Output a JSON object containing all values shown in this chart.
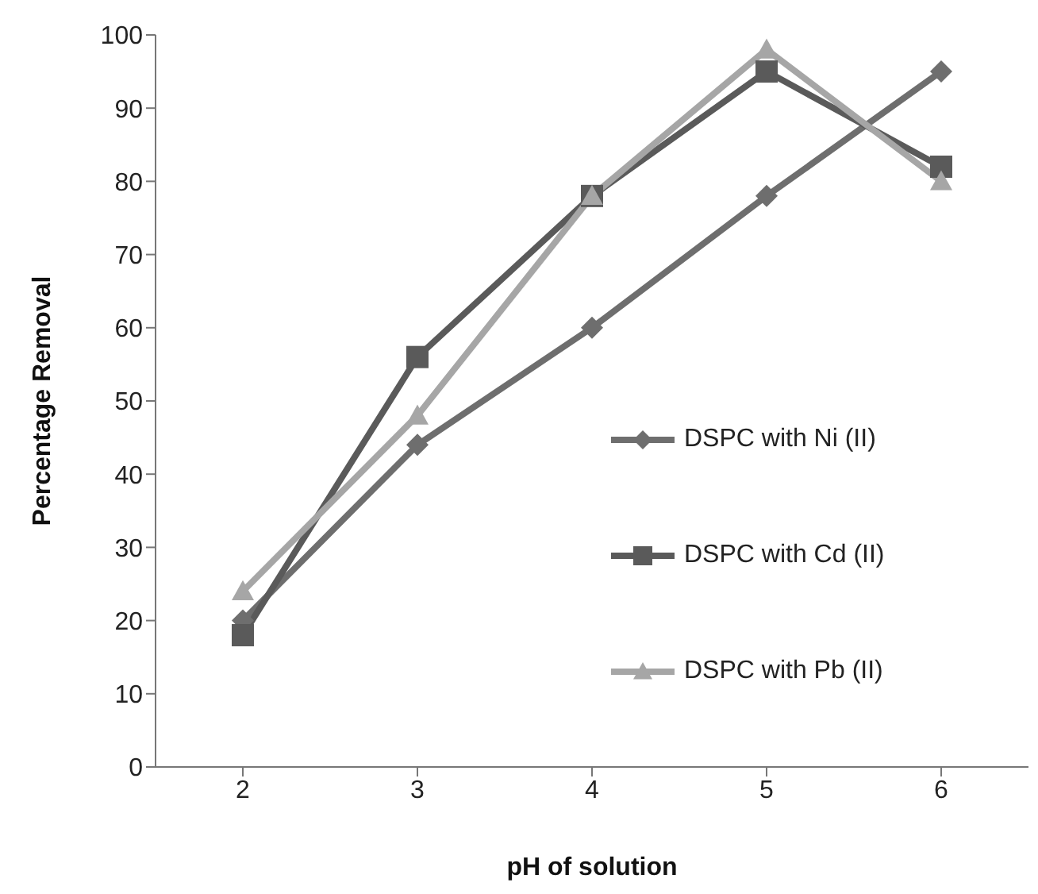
{
  "chart_data": {
    "type": "line",
    "xlabel": "pH of solution",
    "ylabel": "Percentage Removal",
    "categories": [
      "2",
      "3",
      "4",
      "5",
      "6"
    ],
    "series": [
      {
        "name": "DSPC with Ni (II)",
        "color": "#6e6e6e",
        "marker": "diamond",
        "values": [
          20,
          44,
          60,
          78,
          95
        ]
      },
      {
        "name": "DSPC with Cd (II)",
        "color": "#5a5a5a",
        "marker": "square",
        "values": [
          18,
          56,
          78,
          95,
          82
        ]
      },
      {
        "name": "DSPC with Pb (II)",
        "color": "#a6a6a6",
        "marker": "triangle",
        "values": [
          24,
          48,
          78,
          98,
          80
        ]
      }
    ],
    "ylim": [
      0,
      100
    ],
    "yticks": [
      0,
      10,
      20,
      30,
      40,
      50,
      60,
      70,
      80,
      90,
      100
    ],
    "grid": false,
    "legend": "right",
    "line_style": "solid"
  }
}
